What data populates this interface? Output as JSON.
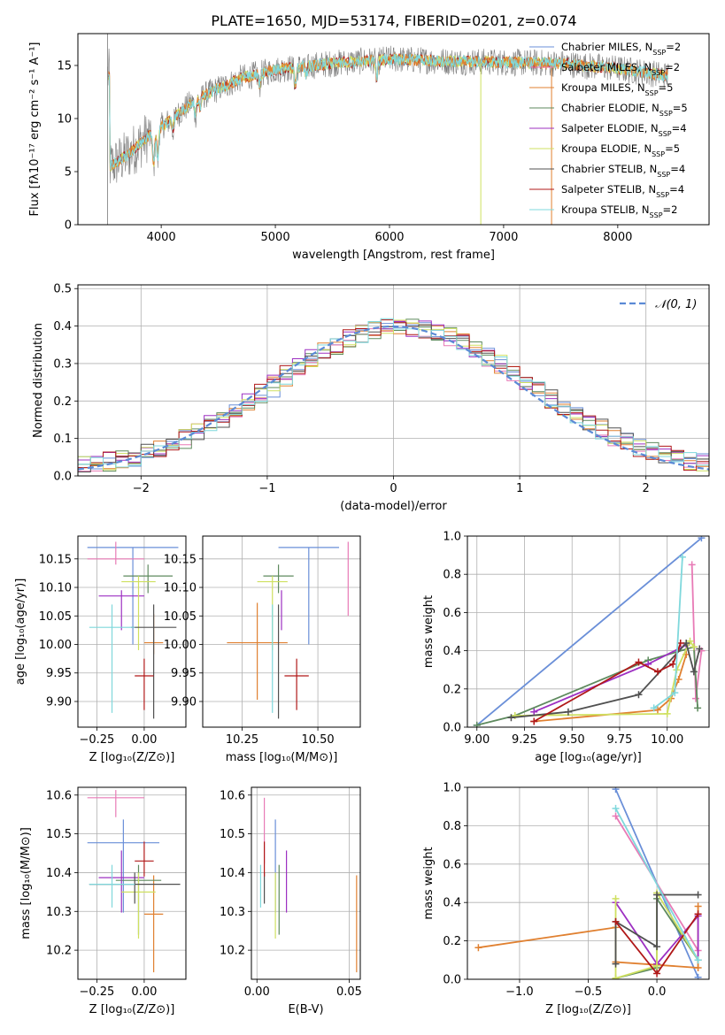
{
  "figure_title": "PLATE=1650, MJD=53174, FIBERID=0201, z=0.074",
  "colors": {
    "Chabrier MILES": "#6a8fd8",
    "Salpeter MILES": "#e87ab6",
    "Kroupa MILES": "#e08030",
    "Chabrier ELODIE": "#5e8a5e",
    "Salpeter ELODIE": "#9d30c2",
    "Kroupa ELODIE": "#cfe060",
    "Chabrier STELIB": "#505050",
    "Salpeter STELIB": "#b01818",
    "Kroupa STELIB": "#7fd8dc",
    "data": "#7a7a7a",
    "normal": "#5b8ad6"
  },
  "chart_data": [
    {
      "id": "spectrum",
      "type": "line",
      "title": "PLATE=1650, MJD=53174, FIBERID=0201, z=0.074",
      "xlabel": "wavelength [Angstrom, rest frame]",
      "ylabel": "Flux [fλ10⁻¹⁷ erg cm⁻² s⁻¹ A⁻¹]",
      "xlim": [
        3270,
        8800
      ],
      "ylim": [
        0,
        18
      ],
      "xticks": [
        4000,
        5000,
        6000,
        7000,
        8000
      ],
      "yticks": [
        0,
        5,
        10,
        15
      ],
      "grid": false,
      "legend_position": "right",
      "legend": [
        {
          "name": "Chabrier MILES, N",
          "sub": "SSP",
          "tail": "=2"
        },
        {
          "name": "Salpeter MILES, N",
          "sub": "SSP",
          "tail": "=2"
        },
        {
          "name": "Kroupa MILES, N",
          "sub": "SSP",
          "tail": "=5"
        },
        {
          "name": "Chabrier ELODIE, N",
          "sub": "SSP",
          "tail": "=5"
        },
        {
          "name": "Salpeter ELODIE, N",
          "sub": "SSP",
          "tail": "=4"
        },
        {
          "name": "Kroupa ELODIE, N",
          "sub": "SSP",
          "tail": "=5"
        },
        {
          "name": "Chabrier STELIB, N",
          "sub": "SSP",
          "tail": "=4"
        },
        {
          "name": "Salpeter STELIB, N",
          "sub": "SSP",
          "tail": "=4"
        },
        {
          "name": "Kroupa STELIB, N",
          "sub": "SSP",
          "tail": "=2"
        }
      ],
      "continuum": [
        [
          3550,
          5.5
        ],
        [
          3700,
          6.5
        ],
        [
          3900,
          8.5
        ],
        [
          4100,
          10.0
        ],
        [
          4300,
          11.8
        ],
        [
          4500,
          12.8
        ],
        [
          4700,
          13.8
        ],
        [
          5000,
          14.6
        ],
        [
          5500,
          15.2
        ],
        [
          6000,
          15.6
        ],
        [
          6500,
          15.4
        ],
        [
          7000,
          15.3
        ],
        [
          7500,
          15.2
        ],
        [
          8000,
          14.7
        ],
        [
          8400,
          14.1
        ]
      ]
    },
    {
      "id": "residuals",
      "type": "bar",
      "xlabel": "(data-model)/error",
      "ylabel": "Normed distribution",
      "xlim": [
        -2.5,
        2.5
      ],
      "ylim": [
        0,
        0.51
      ],
      "xticks": [
        -2,
        -1,
        0,
        1,
        2
      ],
      "yticks": [
        0.0,
        0.1,
        0.2,
        0.3,
        0.4,
        0.5
      ],
      "grid": true,
      "legend": [
        "𝒩(0, 1)"
      ],
      "legend_position": "top-right",
      "bin_width": 0.1
    },
    {
      "id": "age_vs_Z",
      "type": "scatter",
      "xlabel": "Z [log₁₀(Z/Z⊙)]",
      "ylabel": "age  [log₁₀(age/yr)]",
      "xlim": [
        -0.35,
        0.22
      ],
      "ylim": [
        9.855,
        10.19
      ],
      "xticks": [
        -0.25,
        0.0
      ],
      "yticks": [
        9.9,
        9.95,
        10.0,
        10.05,
        10.1,
        10.15
      ],
      "grid": true,
      "points": [
        {
          "series": "Chabrier MILES",
          "x": -0.06,
          "y": 10.17,
          "xerr": 0.24,
          "yerr": [
            0.17,
            0.0
          ]
        },
        {
          "series": "Salpeter MILES",
          "x": -0.15,
          "y": 10.15,
          "xerr": 0.15,
          "yerr": [
            0.01,
            0.03
          ]
        },
        {
          "series": "Kroupa MILES",
          "x": 0.05,
          "y": 10.003,
          "xerr": 0.05,
          "yerr": [
            0.02,
            0.05
          ]
        },
        {
          "series": "Chabrier ELODIE",
          "x": 0.02,
          "y": 10.12,
          "xerr": 0.13,
          "yerr": [
            0.03,
            0.02
          ]
        },
        {
          "series": "Salpeter ELODIE",
          "x": -0.12,
          "y": 10.085,
          "xerr": 0.12,
          "yerr": [
            0.06,
            0.01
          ]
        },
        {
          "series": "Kroupa ELODIE",
          "x": -0.03,
          "y": 10.11,
          "xerr": 0.09,
          "yerr": [
            0.12,
            0.01
          ]
        },
        {
          "series": "Chabrier STELIB",
          "x": 0.05,
          "y": 10.03,
          "xerr": 0.12,
          "yerr": [
            0.16,
            0.04
          ]
        },
        {
          "series": "Salpeter STELIB",
          "x": 0.0,
          "y": 9.945,
          "xerr": 0.05,
          "yerr": [
            0.06,
            0.03
          ]
        },
        {
          "series": "Kroupa STELIB",
          "x": -0.17,
          "y": 10.03,
          "xerr": 0.12,
          "yerr": [
            0.15,
            0.04
          ]
        }
      ]
    },
    {
      "id": "age_vs_mass",
      "type": "scatter",
      "xlabel": "mass [log₁₀(M/M⊙)]",
      "ylabel": "",
      "xlim": [
        10.12,
        10.64
      ],
      "ylim": [
        9.855,
        10.19
      ],
      "xticks": [
        10.25,
        10.5
      ],
      "yticks": [
        9.9,
        9.95,
        10.0,
        10.05,
        10.1,
        10.15
      ],
      "grid": true,
      "points": [
        {
          "series": "Chabrier MILES",
          "x": 10.47,
          "y": 10.17,
          "xerr": 0.1,
          "yerr": [
            0.17,
            0.0
          ]
        },
        {
          "series": "Salpeter MILES",
          "x": 10.6,
          "y": 10.15,
          "xerr": 0.0,
          "yerr": [
            0.1,
            0.03
          ]
        },
        {
          "series": "Kroupa MILES",
          "x": 10.3,
          "y": 10.003,
          "xerr": 0.1,
          "yerr": [
            0.1,
            0.07
          ]
        },
        {
          "series": "Chabrier ELODIE",
          "x": 10.37,
          "y": 10.12,
          "xerr": 0.05,
          "yerr": [
            0.03,
            0.02
          ]
        },
        {
          "series": "Salpeter ELODIE",
          "x": 10.38,
          "y": 10.085,
          "xerr": 0.0,
          "yerr": [
            0.06,
            0.01
          ]
        },
        {
          "series": "Kroupa ELODIE",
          "x": 10.35,
          "y": 10.11,
          "xerr": 0.05,
          "yerr": [
            0.12,
            0.01
          ]
        },
        {
          "series": "Chabrier STELIB",
          "x": 10.37,
          "y": 10.03,
          "xerr": 0.0,
          "yerr": [
            0.16,
            0.04
          ]
        },
        {
          "series": "Salpeter STELIB",
          "x": 10.43,
          "y": 9.945,
          "xerr": 0.04,
          "yerr": [
            0.06,
            0.03
          ]
        },
        {
          "series": "Kroupa STELIB",
          "x": 10.35,
          "y": 10.03,
          "xerr": 0.0,
          "yerr": [
            0.15,
            0.04
          ]
        }
      ]
    },
    {
      "id": "mass_vs_Z",
      "type": "scatter",
      "xlabel": "Z [log₁₀(Z/Z⊙)]",
      "ylabel": "mass [log₁₀(M/M⊙)]",
      "xlim": [
        -0.35,
        0.22
      ],
      "ylim": [
        10.125,
        10.62
      ],
      "xticks": [
        -0.25,
        0.0
      ],
      "yticks": [
        10.2,
        10.3,
        10.4,
        10.5,
        10.6
      ],
      "grid": true,
      "points": [
        {
          "series": "Chabrier MILES",
          "x": -0.11,
          "y": 10.477,
          "xerr": 0.19,
          "yerr": [
            0.18,
            0.06
          ]
        },
        {
          "series": "Salpeter MILES",
          "x": -0.15,
          "y": 10.593,
          "xerr": 0.15,
          "yerr": [
            0.05,
            0.02
          ]
        },
        {
          "series": "Kroupa MILES",
          "x": 0.05,
          "y": 10.293,
          "xerr": 0.05,
          "yerr": [
            0.15,
            0.1
          ]
        },
        {
          "series": "Chabrier ELODIE",
          "x": -0.03,
          "y": 10.38,
          "xerr": 0.12,
          "yerr": [
            0.14,
            0.04
          ]
        },
        {
          "series": "Salpeter ELODIE",
          "x": -0.12,
          "y": 10.387,
          "xerr": 0.12,
          "yerr": [
            0.09,
            0.07
          ]
        },
        {
          "series": "Kroupa ELODIE",
          "x": -0.03,
          "y": 10.35,
          "xerr": 0.09,
          "yerr": [
            0.12,
            0.05
          ]
        },
        {
          "series": "Chabrier STELIB",
          "x": -0.05,
          "y": 10.37,
          "xerr": 0.24,
          "yerr": [
            0.05,
            0.03
          ]
        },
        {
          "series": "Salpeter STELIB",
          "x": 0.0,
          "y": 10.43,
          "xerr": 0.05,
          "yerr": [
            0.04,
            0.05
          ]
        },
        {
          "series": "Kroupa STELIB",
          "x": -0.17,
          "y": 10.37,
          "xerr": 0.12,
          "yerr": [
            0.06,
            0.05
          ]
        }
      ]
    },
    {
      "id": "mass_vs_EBV",
      "type": "scatter",
      "xlabel": "E(B-V)",
      "ylabel": "",
      "xlim": [
        -0.003,
        0.056
      ],
      "ylim": [
        10.125,
        10.62
      ],
      "xticks": [
        0.0,
        0.05
      ],
      "yticks": [
        10.2,
        10.3,
        10.4,
        10.5,
        10.6
      ],
      "grid": true,
      "points": [
        {
          "series": "Chabrier MILES",
          "x": 0.01,
          "y": 10.477,
          "xerr": 0.0,
          "yerr": [
            0.18,
            0.06
          ]
        },
        {
          "series": "Salpeter MILES",
          "x": 0.004,
          "y": 10.593,
          "xerr": 0.0,
          "yerr": [
            0.17,
            0.0
          ]
        },
        {
          "series": "Kroupa MILES",
          "x": 0.054,
          "y": 10.293,
          "xerr": 0.0,
          "yerr": [
            0.15,
            0.1
          ]
        },
        {
          "series": "Chabrier ELODIE",
          "x": 0.012,
          "y": 10.38,
          "xerr": 0.0,
          "yerr": [
            0.14,
            0.04
          ]
        },
        {
          "series": "Salpeter ELODIE",
          "x": 0.016,
          "y": 10.387,
          "xerr": 0.0,
          "yerr": [
            0.09,
            0.07
          ]
        },
        {
          "series": "Kroupa ELODIE",
          "x": 0.01,
          "y": 10.35,
          "xerr": 0.0,
          "yerr": [
            0.12,
            0.05
          ]
        },
        {
          "series": "Chabrier STELIB",
          "x": 0.004,
          "y": 10.37,
          "xerr": 0.0,
          "yerr": [
            0.05,
            0.03
          ]
        },
        {
          "series": "Salpeter STELIB",
          "x": 0.004,
          "y": 10.43,
          "xerr": 0.0,
          "yerr": [
            0.04,
            0.05
          ]
        },
        {
          "series": "Kroupa STELIB",
          "x": 0.002,
          "y": 10.37,
          "xerr": 0.0,
          "yerr": [
            0.06,
            0.05
          ]
        }
      ]
    },
    {
      "id": "mass_weight_vs_age",
      "type": "line",
      "xlabel": "age  [log₁₀(age/yr)]",
      "ylabel": "mass weight",
      "xlim": [
        8.95,
        10.22
      ],
      "ylim": [
        0.0,
        1.0
      ],
      "xticks": [
        9.0,
        9.25,
        9.5,
        9.75,
        10.0
      ],
      "yticks": [
        0.0,
        0.2,
        0.4,
        0.6,
        0.8,
        1.0
      ],
      "grid": true,
      "series": [
        {
          "name": "Chabrier MILES",
          "x": [
            9.0,
            10.18
          ],
          "y": [
            0.01,
            0.99
          ]
        },
        {
          "name": "Salpeter MILES",
          "x": [
            10.13,
            10.15,
            10.18
          ],
          "y": [
            0.85,
            0.15,
            0.4
          ]
        },
        {
          "name": "Kroupa MILES",
          "x": [
            9.3,
            9.95,
            10.02,
            10.06,
            10.1
          ],
          "y": [
            0.03,
            0.09,
            0.15,
            0.25,
            0.38
          ]
        },
        {
          "name": "Chabrier ELODIE",
          "x": [
            9.0,
            9.2,
            9.9,
            10.14,
            10.16
          ],
          "y": [
            0.01,
            0.06,
            0.35,
            0.42,
            0.1
          ]
        },
        {
          "name": "Salpeter ELODIE",
          "x": [
            9.3,
            9.9,
            10.1
          ],
          "y": [
            0.08,
            0.33,
            0.43
          ]
        },
        {
          "name": "Kroupa ELODIE",
          "x": [
            9.2,
            10.0,
            10.05,
            10.12,
            10.14
          ],
          "y": [
            0.06,
            0.07,
            0.3,
            0.45,
            0.42
          ]
        },
        {
          "name": "Chabrier STELIB",
          "x": [
            9.18,
            9.48,
            9.85,
            10.1,
            10.14,
            10.17
          ],
          "y": [
            0.05,
            0.08,
            0.17,
            0.44,
            0.29,
            0.41
          ]
        },
        {
          "name": "Salpeter STELIB",
          "x": [
            9.3,
            9.85,
            9.95,
            10.03,
            10.07
          ],
          "y": [
            0.03,
            0.34,
            0.29,
            0.33,
            0.44
          ]
        },
        {
          "name": "Kroupa STELIB",
          "x": [
            9.93,
            10.04,
            10.08
          ],
          "y": [
            0.1,
            0.18,
            0.89
          ]
        }
      ]
    },
    {
      "id": "mass_weight_vs_Z",
      "type": "line",
      "xlabel": "Z [log₁₀(Z/Z⊙)]",
      "ylabel": "mass weight",
      "xlim": [
        -1.38,
        0.38
      ],
      "ylim": [
        0.0,
        1.0
      ],
      "xticks": [
        -1.0,
        -0.5,
        0.0
      ],
      "yticks": [
        0.0,
        0.2,
        0.4,
        0.6,
        0.8,
        1.0
      ],
      "grid": true,
      "series": [
        {
          "name": "Chabrier MILES",
          "x": [
            -0.3,
            0.3
          ],
          "y": [
            0.99,
            0.01
          ]
        },
        {
          "name": "Salpeter MILES",
          "x": [
            -0.3,
            0.3
          ],
          "y": [
            0.85,
            0.15
          ]
        },
        {
          "name": "Kroupa MILES",
          "x": [
            -1.3,
            -0.3,
            -0.3,
            0.3,
            0.3
          ],
          "y": [
            0.165,
            0.27,
            0.09,
            0.06,
            0.38
          ]
        },
        {
          "name": "Chabrier ELODIE",
          "x": [
            -0.3,
            0.0,
            0.0,
            0.3
          ],
          "y": [
            0.005,
            0.06,
            0.42,
            0.1
          ]
        },
        {
          "name": "Salpeter ELODIE",
          "x": [
            -0.3,
            0.0,
            0.3,
            0.3
          ],
          "y": [
            0.4,
            0.08,
            0.33,
            0.1
          ]
        },
        {
          "name": "Kroupa ELODIE",
          "x": [
            -0.3,
            -0.3,
            0.0,
            0.0,
            0.3
          ],
          "y": [
            0.42,
            0.005,
            0.07,
            0.45,
            0.1
          ]
        },
        {
          "name": "Chabrier STELIB",
          "x": [
            -0.3,
            -0.3,
            0.0,
            0.0,
            0.3
          ],
          "y": [
            0.08,
            0.3,
            0.17,
            0.44,
            0.44
          ]
        },
        {
          "name": "Salpeter STELIB",
          "x": [
            -0.3,
            0.0,
            0.3
          ],
          "y": [
            0.3,
            0.03,
            0.34
          ]
        },
        {
          "name": "Kroupa STELIB",
          "x": [
            -0.3,
            0.3
          ],
          "y": [
            0.89,
            0.1
          ]
        }
      ]
    }
  ]
}
